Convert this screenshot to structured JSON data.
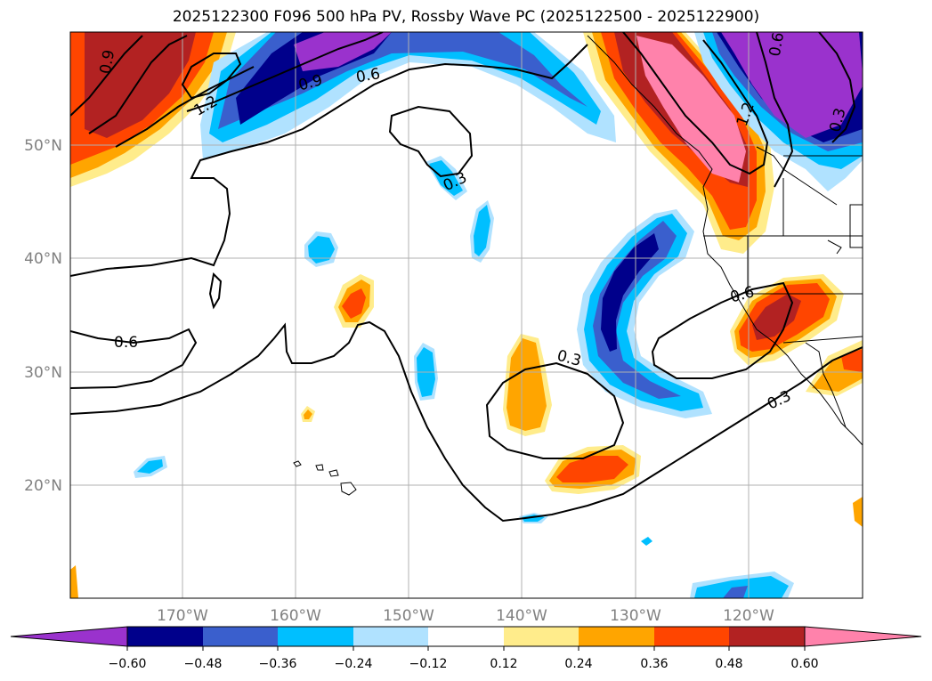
{
  "title": "2025122300 F096 500 hPa PV, Rossby Wave PC (2025122500 - 2025122900)",
  "map": {
    "lat_labels": [
      "50°N",
      "40°N",
      "30°N",
      "20°N"
    ],
    "lon_labels": [
      "170°W",
      "160°W",
      "150°W",
      "140°W",
      "130°W",
      "120°W"
    ],
    "contour_labels": [
      {
        "text": "0.6",
        "name": "contour-label-0-6-west"
      },
      {
        "text": "0.3",
        "name": "contour-label-0-3-central-north"
      },
      {
        "text": "0.3",
        "name": "contour-label-0-3-central"
      },
      {
        "text": "0.6",
        "name": "contour-label-0-6-coast"
      },
      {
        "text": "0.3",
        "name": "contour-label-0-3-southeast"
      },
      {
        "text": "0.6",
        "name": "contour-label-0-6-north-gulf"
      },
      {
        "text": "0.9",
        "name": "contour-label-0-9-north"
      },
      {
        "text": "1.2",
        "name": "contour-label-1-2-northwest"
      },
      {
        "text": "1.2",
        "name": "contour-label-1-2-northeast"
      },
      {
        "text": "0.9",
        "name": "contour-label-0-9-northwest-corner"
      },
      {
        "text": "0.3",
        "name": "contour-label-0-3-northeast-corner"
      },
      {
        "text": "0.6",
        "name": "contour-label-0-6-northeast-top"
      }
    ]
  },
  "colorbar": {
    "ticks": [
      "−0.60",
      "−0.48",
      "−0.36",
      "−0.24",
      "−0.12",
      "0.12",
      "0.24",
      "0.36",
      "0.48",
      "0.60"
    ],
    "colors": [
      "#9a32cd",
      "#00008b",
      "#3a5fcd",
      "#00bfff",
      "#b0e2ff",
      "#ffffff",
      "#ffec8b",
      "#ffa500",
      "#ff4500",
      "#b22222",
      "#ff82ab"
    ]
  }
}
